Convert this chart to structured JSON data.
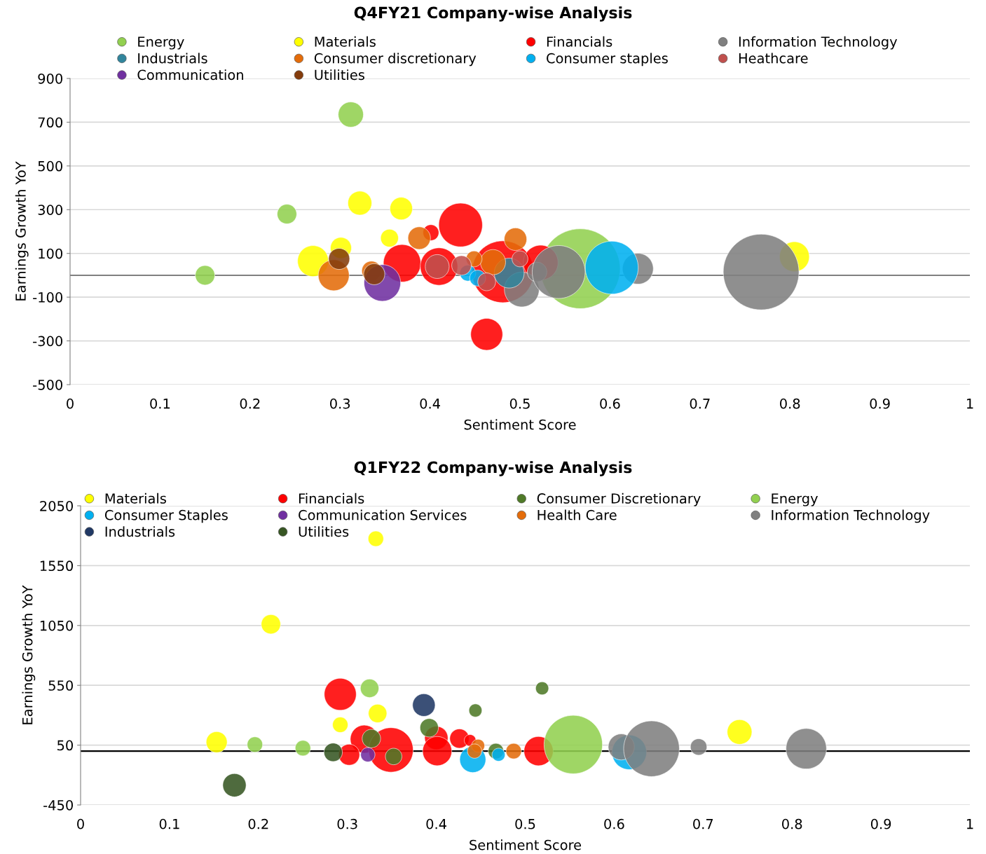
{
  "chart_data": [
    {
      "type": "bubble",
      "title": "Q4FY21 Company-wise Analysis",
      "xlabel": "Sentiment Score",
      "ylabel": "Earnings Growth YoY",
      "xlim": [
        0,
        1
      ],
      "xticks": [
        0,
        0.1,
        0.2,
        0.3,
        0.4,
        0.5,
        0.6,
        0.7,
        0.8,
        0.9,
        1
      ],
      "ylim": [
        -500,
        900
      ],
      "yticks": [
        -500,
        -300,
        -100,
        100,
        300,
        500,
        700,
        900
      ],
      "grid": "y",
      "legend": "top",
      "marker": "circle",
      "ref_lines": [
        {
          "axis": "y",
          "value": 0,
          "color": "#808080"
        }
      ],
      "series": [
        {
          "name": "Energy",
          "color": "#92d050",
          "x": [
            0.15,
            0.241,
            0.312,
            0.567
          ],
          "values": [
            0,
            280,
            735,
            30
          ],
          "sizes": [
            0.06,
            0.06,
            0.1,
            1
          ]
        },
        {
          "name": "Materials",
          "color": "#ffff00",
          "x": [
            0.27,
            0.301,
            0.322,
            0.368,
            0.355,
            0.805
          ],
          "values": [
            65,
            125,
            330,
            305,
            170,
            85
          ],
          "sizes": [
            0.15,
            0.07,
            0.09,
            0.08,
            0.05,
            0.14
          ]
        },
        {
          "name": "Financials",
          "color": "#ff0000",
          "x": [
            0.369,
            0.401,
            0.434,
            0.41,
            0.481,
            0.463,
            0.523
          ],
          "values": [
            55,
            195,
            230,
            40,
            16,
            -270,
            58
          ],
          "sizes": [
            0.22,
            0.04,
            0.3,
            0.22,
            0.6,
            0.16,
            0.19
          ]
        },
        {
          "name": "Information Technology",
          "color": "#808080",
          "x": [
            0.502,
            0.519,
            0.543,
            0.631,
            0.768
          ],
          "values": [
            -65,
            15,
            15,
            30,
            15
          ],
          "sizes": [
            0.19,
            0.06,
            0.44,
            0.15,
            0.9
          ]
        },
        {
          "name": "Industrials",
          "color": "#31859c",
          "x": [
            0.488
          ],
          "values": [
            10
          ],
          "sizes": [
            0.14
          ]
        },
        {
          "name": "Consumer discretionary",
          "color": "#e46c0a",
          "x": [
            0.293,
            0.388,
            0.495,
            0.47,
            0.449,
            0.335
          ],
          "values": [
            0,
            170,
            165,
            60,
            75,
            20
          ],
          "sizes": [
            0.15,
            0.08,
            0.08,
            0.1,
            0.04,
            0.06
          ]
        },
        {
          "name": "Consumer staples",
          "color": "#00b0f0",
          "x": [
            0.602,
            0.442,
            0.453
          ],
          "values": [
            35,
            10,
            -13
          ],
          "sizes": [
            0.44,
            0.04,
            0.04
          ]
        },
        {
          "name": "Heathcare",
          "color": "#c0504d",
          "x": [
            0.408,
            0.435,
            0.463,
            0.5
          ],
          "values": [
            40,
            45,
            -30,
            75
          ],
          "sizes": [
            0.09,
            0.06,
            0.05,
            0.04
          ]
        },
        {
          "name": "Communication",
          "color": "#7030a0",
          "x": [
            0.347
          ],
          "values": [
            -35
          ],
          "sizes": [
            0.21
          ]
        },
        {
          "name": "Utilities",
          "color": "#843c0c",
          "x": [
            0.299,
            0.338
          ],
          "values": [
            75,
            5
          ],
          "sizes": [
            0.07,
            0.07
          ]
        }
      ]
    },
    {
      "type": "bubble",
      "title": "Q1FY22 Company-wise Analysis",
      "xlabel": "Sentiment Score",
      "ylabel": "Earnings Growth YoY",
      "xlim": [
        0,
        1
      ],
      "xticks": [
        0,
        0.1,
        0.2,
        0.3,
        0.4,
        0.5,
        0.6,
        0.7,
        0.8,
        0.9,
        1
      ],
      "ylim": [
        -450,
        2050
      ],
      "yticks": [
        -450,
        50,
        550,
        1050,
        1550,
        2050
      ],
      "grid": "y",
      "legend": "top",
      "marker": "circle",
      "ref_lines": [
        {
          "axis": "y",
          "value": 0,
          "color": "#000000"
        }
      ],
      "series": [
        {
          "name": "Materials",
          "color": "#ffff00",
          "x": [
            0.153,
            0.214,
            0.332,
            0.292,
            0.334,
            0.741
          ],
          "values": [
            75,
            1060,
            1775,
            220,
            315,
            160
          ],
          "sizes": [
            0.13,
            0.11,
            0.07,
            0.07,
            0.1,
            0.18
          ]
        },
        {
          "name": "Financials",
          "color": "#ff0000",
          "x": [
            0.292,
            0.319,
            0.302,
            0.349,
            0.4,
            0.401,
            0.426,
            0.438,
            0.515
          ],
          "values": [
            475,
            100,
            -30,
            10,
            110,
            0,
            105,
            90,
            0
          ],
          "sizes": [
            0.3,
            0.23,
            0.13,
            0.58,
            0.16,
            0.25,
            0.11,
            0.04,
            0.25
          ]
        },
        {
          "name": "Consumer Discretionary",
          "color": "#4f7a28",
          "x": [
            0.327,
            0.352,
            0.392,
            0.444,
            0.519,
            0.467
          ],
          "values": [
            105,
            -45,
            195,
            340,
            525,
            0
          ],
          "sizes": [
            0.1,
            0.08,
            0.1,
            0.05,
            0.05,
            0.07
          ]
        },
        {
          "name": "Energy",
          "color": "#92d050",
          "x": [
            0.196,
            0.25,
            0.325,
            0.554
          ],
          "values": [
            55,
            25,
            525,
            55
          ],
          "sizes": [
            0.07,
            0.07,
            0.1,
            1
          ]
        },
        {
          "name": "Consumer Staples",
          "color": "#00b0f0",
          "x": [
            0.441,
            0.47,
            0.617
          ],
          "values": [
            -70,
            -30,
            -10
          ],
          "sizes": [
            0.2,
            0.05,
            0.35
          ]
        },
        {
          "name": "Communication Services",
          "color": "#7030a0",
          "x": [
            0.323
          ],
          "values": [
            -30
          ],
          "sizes": [
            0.06
          ]
        },
        {
          "name": "Health Care",
          "color": "#e46c0a",
          "x": [
            0.487,
            0.447,
            0.443
          ],
          "values": [
            0,
            45,
            0
          ],
          "sizes": [
            0.07,
            0.05,
            0.06
          ]
        },
        {
          "name": "Information Technology",
          "color": "#808080",
          "x": [
            0.608,
            0.642,
            0.695,
            0.816
          ],
          "values": [
            35,
            20,
            35,
            20
          ],
          "sizes": [
            0.2,
            0.91,
            0.08,
            0.48
          ]
        },
        {
          "name": "Industrials",
          "color": "#203864",
          "x": [
            0.386
          ],
          "values": [
            385
          ],
          "sizes": [
            0.15
          ]
        },
        {
          "name": "Utilities",
          "color": "#375623",
          "x": [
            0.173,
            0.284
          ],
          "values": [
            -285,
            -10
          ],
          "sizes": [
            0.16,
            0.1
          ]
        }
      ]
    }
  ]
}
